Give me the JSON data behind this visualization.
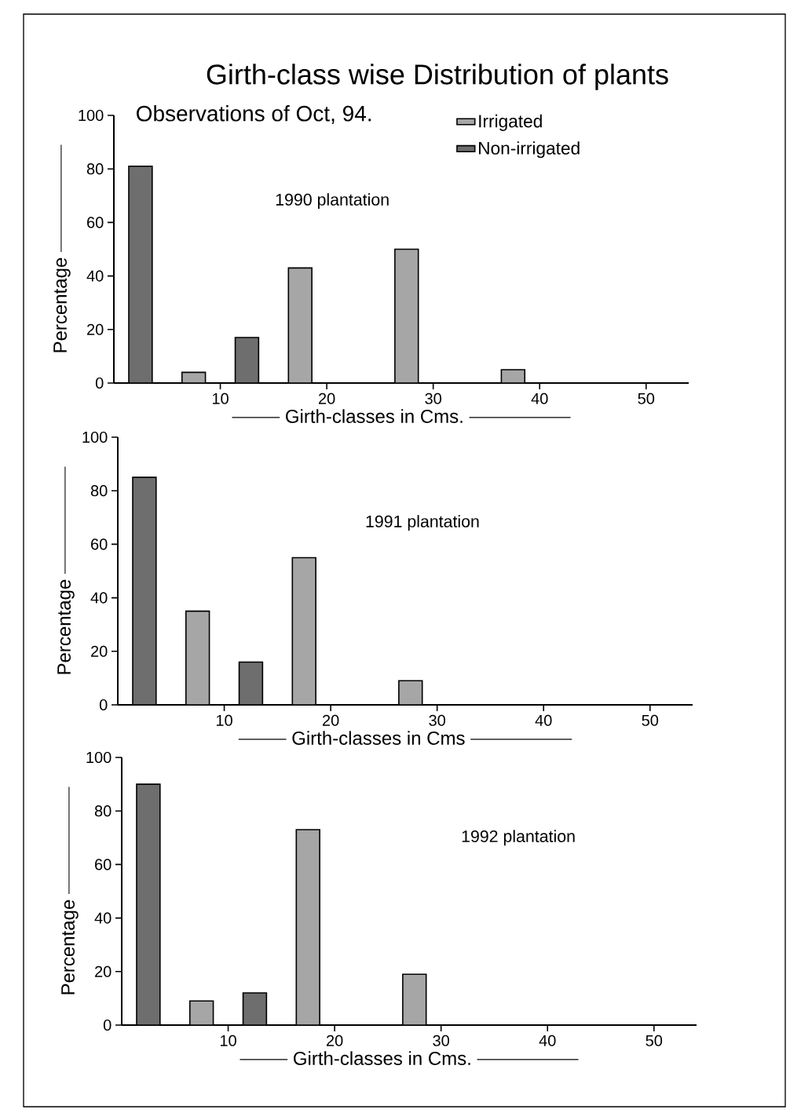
{
  "chart_data": [
    {
      "type": "bar",
      "title": "Girth-class wise Distribution of plants",
      "subtitle": "Observations of Oct, 94.",
      "xlabel": "Girth-classes in Cms.",
      "ylabel": "Percentage",
      "annotations": [
        "1990 plantation"
      ],
      "x": [
        2.5,
        7.5,
        12.5,
        17.5,
        27.5,
        37.5
      ],
      "series": [
        {
          "name": "Irrigated",
          "color": "#a6a6a6",
          "values": [
            null,
            4,
            null,
            43,
            50,
            5
          ]
        },
        {
          "name": "Non-irrigated",
          "color": "#6e6e6e",
          "values": [
            81,
            null,
            17,
            null,
            null,
            null
          ]
        }
      ],
      "xlim": [
        0,
        54
      ],
      "xticks": [
        10,
        20,
        30,
        40,
        50
      ],
      "ylim": [
        0,
        100
      ],
      "yticks": [
        0,
        20,
        40,
        60,
        80,
        100
      ],
      "legend": "top right"
    },
    {
      "type": "bar",
      "xlabel": "Girth-classes in Cms",
      "ylabel": "Percentage",
      "annotations": [
        "1991 plantation"
      ],
      "x": [
        2.5,
        7.5,
        12.5,
        17.5,
        27.5
      ],
      "series": [
        {
          "color": "#a6a6a6",
          "values": [
            null,
            35,
            null,
            55,
            9
          ]
        },
        {
          "color": "#6e6e6e",
          "values": [
            85,
            null,
            16,
            null,
            null
          ]
        }
      ],
      "xlim": [
        0,
        54
      ],
      "xticks": [
        10,
        20,
        30,
        40,
        50
      ],
      "ylim": [
        0,
        100
      ],
      "yticks": [
        0,
        20,
        40,
        60,
        80,
        100
      ]
    },
    {
      "type": "bar",
      "xlabel": "Girth-classes in Cms.",
      "ylabel": "Percentage",
      "annotations": [
        "1992 plantation"
      ],
      "x": [
        2.5,
        7.5,
        12.5,
        17.5,
        27.5
      ],
      "series": [
        {
          "color": "#a6a6a6",
          "values": [
            null,
            9,
            null,
            73,
            19
          ]
        },
        {
          "color": "#6e6e6e",
          "values": [
            90,
            null,
            12,
            null,
            null
          ]
        }
      ],
      "xlim": [
        0,
        54
      ],
      "xticks": [
        10,
        20,
        30,
        40,
        50
      ],
      "ylim": [
        0,
        100
      ],
      "yticks": [
        0,
        20,
        40,
        60,
        80,
        100
      ]
    }
  ]
}
